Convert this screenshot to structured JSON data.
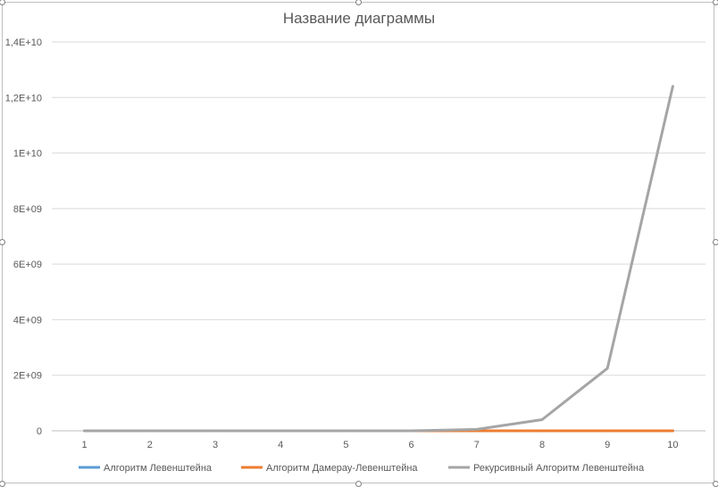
{
  "chart_data": {
    "type": "line",
    "title": "Название диаграммы",
    "xlabel": "",
    "ylabel": "",
    "categories": [
      "1",
      "2",
      "3",
      "4",
      "5",
      "6",
      "7",
      "8",
      "9",
      "10"
    ],
    "ylim": [
      0,
      14000000000
    ],
    "y_ticks": [
      0,
      2000000000,
      4000000000,
      6000000000,
      8000000000,
      10000000000,
      12000000000,
      14000000000
    ],
    "y_tick_labels": [
      "0",
      "2E+09",
      "4E+09",
      "6E+09",
      "8E+09",
      "1E+10",
      "1,2E+10",
      "1,4E+10"
    ],
    "grid": true,
    "legend_position": "bottom",
    "series": [
      {
        "name": "Алгоритм Левенштейна",
        "color": "#5b9bd5",
        "values": [
          0,
          0,
          0,
          0,
          0,
          0,
          0,
          0,
          0,
          0
        ]
      },
      {
        "name": "Алгоритм Дамерау-Левенштейна",
        "color": "#ed7d31",
        "values": [
          0,
          0,
          0,
          0,
          0,
          0,
          0,
          0,
          0,
          0
        ]
      },
      {
        "name": "Рекурсивный Алгоритм Левенштейна",
        "color": "#a5a5a5",
        "values": [
          0,
          0,
          0,
          0,
          0,
          0,
          50000000,
          400000000,
          2250000000,
          12400000000
        ]
      }
    ]
  }
}
